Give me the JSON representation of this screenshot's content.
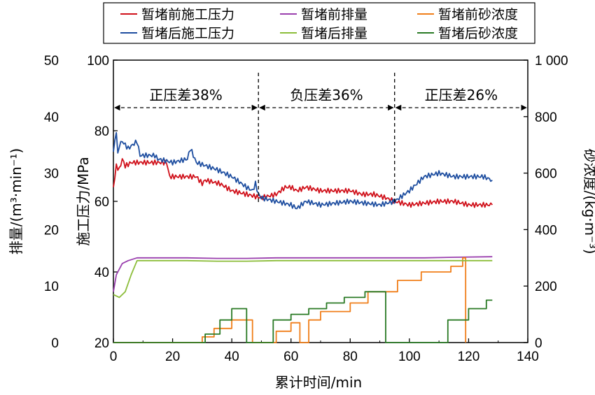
{
  "chart_data": {
    "type": "line",
    "xlabel": "累计时间/min",
    "ylabel_left_outer": "排量/(m³·min⁻¹)",
    "ylabel_left_inner": "施工压力/MPa",
    "ylabel_right": "砂浓度/(kg·m⁻³)",
    "xlim": [
      0,
      140
    ],
    "xticks": [
      "0",
      "20",
      "40",
      "60",
      "80",
      "100",
      "120",
      "140"
    ],
    "pressure_axis": {
      "range": [
        20,
        100
      ],
      "ticks": [
        "20",
        "40",
        "60",
        "80",
        "100"
      ]
    },
    "rate_axis": {
      "range": [
        0,
        50
      ],
      "ticks": [
        "0",
        "10",
        "20",
        "30",
        "40",
        "50"
      ]
    },
    "conc_axis": {
      "range": [
        0,
        1000
      ],
      "ticks": [
        "0",
        "200",
        "400",
        "600",
        "800",
        "1 000"
      ]
    },
    "legend_position": "top",
    "legend": [
      "暂堵前施工压力",
      "暂堵前排量",
      "暂堵前砂浓度",
      "暂堵后施工压力",
      "暂堵后排量",
      "暂堵后砂浓度"
    ],
    "annotations": {
      "dividers_x": [
        49,
        95
      ],
      "labels": [
        "正压差38%",
        "负压差36%",
        "正压差26%"
      ]
    },
    "series": [
      {
        "name": "暂堵前施工压力",
        "axis": "pressure",
        "color": "#d0101a",
        "points": [
          [
            0,
            64
          ],
          [
            1,
            70
          ],
          [
            2,
            69
          ],
          [
            3,
            72
          ],
          [
            4,
            70
          ],
          [
            6,
            71
          ],
          [
            10,
            71
          ],
          [
            18,
            71
          ],
          [
            19,
            67
          ],
          [
            25,
            67
          ],
          [
            28,
            67
          ],
          [
            30,
            65
          ],
          [
            31,
            66
          ],
          [
            36,
            65
          ],
          [
            40,
            63
          ],
          [
            45,
            62
          ],
          [
            50,
            61
          ],
          [
            55,
            62
          ],
          [
            58,
            64
          ],
          [
            60,
            64
          ],
          [
            62,
            63
          ],
          [
            65,
            64
          ],
          [
            70,
            63
          ],
          [
            75,
            63
          ],
          [
            80,
            63
          ],
          [
            84,
            62
          ],
          [
            88,
            62
          ],
          [
            92,
            61
          ],
          [
            95,
            60
          ],
          [
            100,
            59
          ],
          [
            110,
            60
          ],
          [
            115,
            60
          ],
          [
            120,
            59
          ],
          [
            125,
            59
          ],
          [
            128,
            59
          ]
        ]
      },
      {
        "name": "暂堵前排量",
        "axis": "rate",
        "color": "#9a3fae",
        "points": [
          [
            0,
            9
          ],
          [
            1,
            12
          ],
          [
            3,
            14
          ],
          [
            5,
            14.5
          ],
          [
            8,
            15
          ],
          [
            15,
            15
          ],
          [
            25,
            15
          ],
          [
            35,
            14.9
          ],
          [
            45,
            14.9
          ],
          [
            55,
            15
          ],
          [
            65,
            15
          ],
          [
            75,
            15
          ],
          [
            85,
            15
          ],
          [
            95,
            15
          ],
          [
            105,
            15
          ],
          [
            115,
            15.1
          ],
          [
            128,
            15.2
          ]
        ]
      },
      {
        "name": "暂堵前砂浓度",
        "axis": "conc",
        "color": "#f07e19",
        "points": [
          [
            0,
            0
          ],
          [
            30,
            0
          ],
          [
            30,
            20
          ],
          [
            34,
            20
          ],
          [
            34,
            50
          ],
          [
            40,
            50
          ],
          [
            40,
            80
          ],
          [
            47,
            80
          ],
          [
            47,
            0
          ],
          [
            55,
            0
          ],
          [
            55,
            40
          ],
          [
            60,
            40
          ],
          [
            60,
            70
          ],
          [
            63,
            70
          ],
          [
            63,
            0
          ],
          [
            66,
            0
          ],
          [
            66,
            80
          ],
          [
            70,
            80
          ],
          [
            70,
            110
          ],
          [
            80,
            110
          ],
          [
            80,
            140
          ],
          [
            86,
            140
          ],
          [
            86,
            180
          ],
          [
            96,
            180
          ],
          [
            96,
            220
          ],
          [
            104,
            220
          ],
          [
            104,
            250
          ],
          [
            114,
            250
          ],
          [
            114,
            270
          ],
          [
            118,
            270
          ],
          [
            118,
            300
          ],
          [
            119,
            300
          ],
          [
            119,
            0
          ]
        ]
      },
      {
        "name": "暂堵后施工压力",
        "axis": "pressure",
        "color": "#1e4ea0",
        "points": [
          [
            0,
            74
          ],
          [
            1,
            80
          ],
          [
            1.5,
            73
          ],
          [
            2,
            76
          ],
          [
            3,
            77
          ],
          [
            5,
            75
          ],
          [
            8,
            77
          ],
          [
            9,
            73
          ],
          [
            14,
            73
          ],
          [
            15,
            72
          ],
          [
            20,
            71
          ],
          [
            25,
            72
          ],
          [
            26,
            75
          ],
          [
            28,
            71
          ],
          [
            35,
            69
          ],
          [
            40,
            67
          ],
          [
            45,
            64
          ],
          [
            47,
            63
          ],
          [
            48,
            65
          ],
          [
            49,
            62
          ],
          [
            50,
            61
          ],
          [
            55,
            60
          ],
          [
            60,
            59
          ],
          [
            62,
            58
          ],
          [
            65,
            60
          ],
          [
            70,
            59
          ],
          [
            80,
            60
          ],
          [
            90,
            59
          ],
          [
            95,
            60
          ],
          [
            100,
            63
          ],
          [
            105,
            67
          ],
          [
            110,
            68
          ],
          [
            115,
            67
          ],
          [
            120,
            67
          ],
          [
            125,
            67
          ],
          [
            128,
            66
          ]
        ]
      },
      {
        "name": "暂堵后排量",
        "axis": "rate",
        "color": "#8cbd3a",
        "points": [
          [
            0,
            8.5
          ],
          [
            2,
            8
          ],
          [
            4,
            9
          ],
          [
            6,
            12
          ],
          [
            8,
            14.5
          ],
          [
            10,
            14.5
          ],
          [
            15,
            14.5
          ],
          [
            25,
            14.5
          ],
          [
            35,
            14.4
          ],
          [
            45,
            14.4
          ],
          [
            55,
            14.5
          ],
          [
            65,
            14.5
          ],
          [
            75,
            14.5
          ],
          [
            85,
            14.5
          ],
          [
            95,
            14.5
          ],
          [
            105,
            14.5
          ],
          [
            115,
            14.5
          ],
          [
            128,
            14.5
          ]
        ]
      },
      {
        "name": "暂堵后砂浓度",
        "axis": "conc",
        "color": "#2a7a25",
        "points": [
          [
            0,
            0
          ],
          [
            31,
            0
          ],
          [
            31,
            30
          ],
          [
            36,
            30
          ],
          [
            36,
            80
          ],
          [
            40,
            80
          ],
          [
            40,
            120
          ],
          [
            45,
            120
          ],
          [
            45,
            0
          ],
          [
            54,
            0
          ],
          [
            54,
            80
          ],
          [
            60,
            80
          ],
          [
            60,
            100
          ],
          [
            66,
            100
          ],
          [
            66,
            120
          ],
          [
            72,
            120
          ],
          [
            72,
            140
          ],
          [
            78,
            140
          ],
          [
            78,
            160
          ],
          [
            85,
            160
          ],
          [
            85,
            180
          ],
          [
            88,
            180
          ],
          [
            88,
            180
          ],
          [
            92,
            180
          ],
          [
            92,
            0
          ],
          [
            113,
            0
          ],
          [
            113,
            80
          ],
          [
            120,
            80
          ],
          [
            120,
            120
          ],
          [
            126,
            120
          ],
          [
            126,
            150
          ],
          [
            128,
            150
          ]
        ]
      }
    ]
  }
}
